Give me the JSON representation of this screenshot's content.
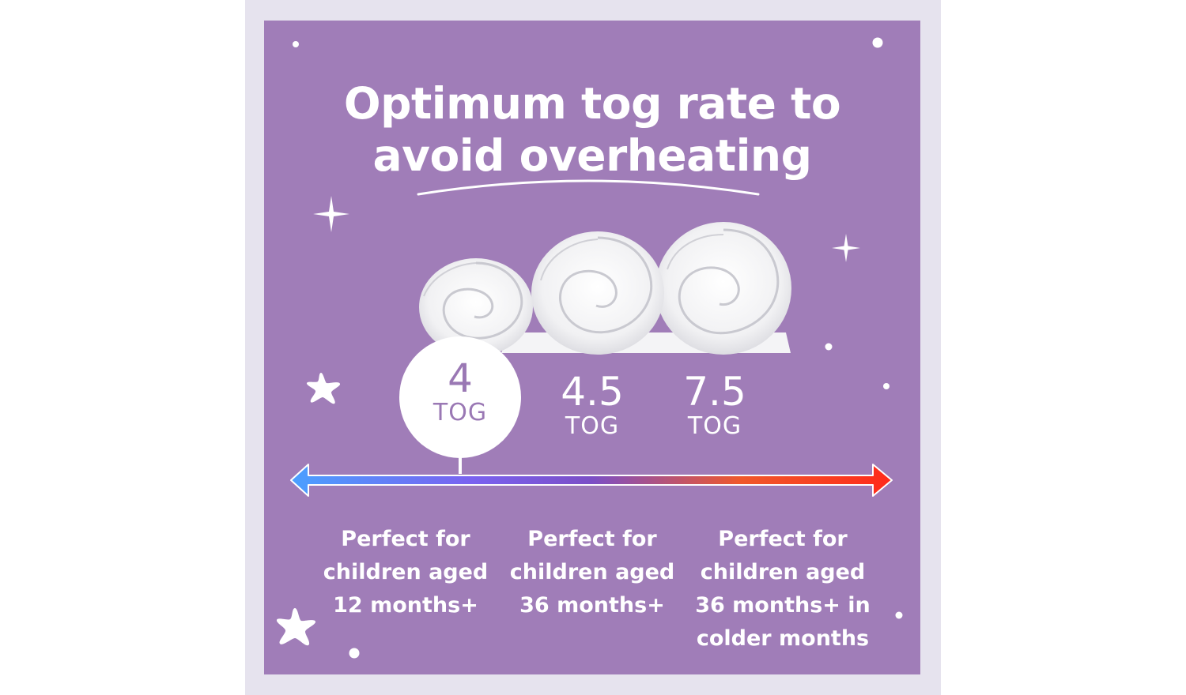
{
  "title": {
    "line1": "Optimum tog rate to",
    "line2": "avoid overheating"
  },
  "options": [
    {
      "value": "4",
      "unit": "TOG",
      "highlighted": true,
      "description": [
        "Perfect for",
        "children aged",
        "12 months+"
      ]
    },
    {
      "value": "4.5",
      "unit": "TOG",
      "highlighted": false,
      "description": [
        "Perfect for",
        "children aged",
        "36 months+"
      ]
    },
    {
      "value": "7.5",
      "unit": "TOG",
      "highlighted": false,
      "description": [
        "Perfect for",
        "children aged",
        "36 months+ in",
        "colder months"
      ]
    }
  ],
  "colors": {
    "background": "#a07db8",
    "frame": "#e6e3ee",
    "text": "#ffffff",
    "scale_cold": "#4aa0ff",
    "scale_mid": "#7b4fc6",
    "scale_hot": "#ff2a1a"
  },
  "icons": [
    "sparkle-icon",
    "star-icon",
    "dot-icon",
    "rolled-duvet-icon",
    "double-arrow-scale-icon"
  ]
}
